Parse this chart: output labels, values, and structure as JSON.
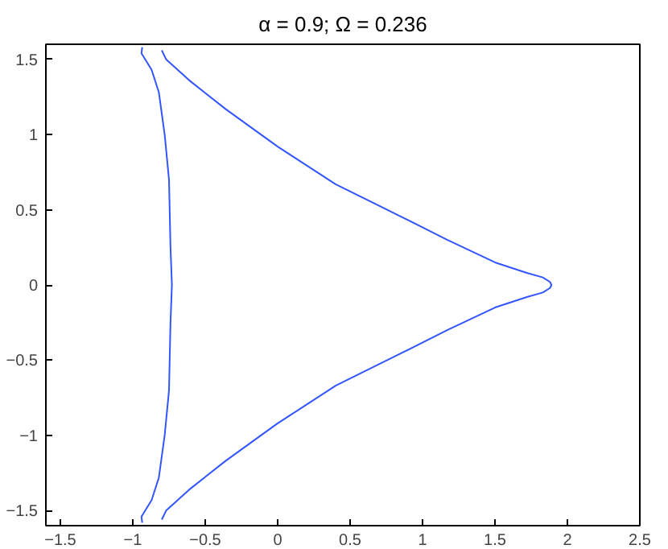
{
  "chart_data": {
    "type": "line",
    "title": "α = 0.9; Ω = 0.236",
    "series": [
      {
        "color": "#3355ff",
        "x": [
          -0.8,
          -0.77,
          -0.61,
          -0.36,
          0,
          0.4,
          0.84,
          1.17,
          1.5,
          1.72,
          1.83,
          1.88,
          1.89,
          1.88,
          1.83,
          1.72,
          1.5,
          1.17,
          0.84,
          0.4,
          0,
          -0.36,
          -0.61,
          -0.77,
          -0.8,
          null,
          -0.935,
          -0.94,
          -0.87,
          -0.82,
          -0.78,
          -0.75,
          -0.74,
          -0.73,
          -0.74,
          -0.75,
          -0.78,
          -0.82,
          -0.87,
          -0.94,
          -0.935
        ],
        "values": [
          1.56,
          1.5,
          1.36,
          1.17,
          0.92,
          0.67,
          0.46,
          0.3,
          0.15,
          0.08,
          0.05,
          0.02,
          0,
          -0.02,
          -0.05,
          -0.08,
          -0.15,
          -0.3,
          -0.46,
          -0.67,
          -0.92,
          -1.17,
          -1.36,
          -1.5,
          -1.56,
          null,
          -1.58,
          -1.54,
          -1.43,
          -1.28,
          -1.0,
          -0.7,
          -0.26,
          0,
          0.26,
          0.7,
          1.0,
          1.28,
          1.43,
          1.54,
          1.58
        ]
      }
    ],
    "xlim": [
      -1.6,
      2.5
    ],
    "ylim": [
      -1.6,
      1.6
    ],
    "xticks": [
      -1.5,
      -1,
      -0.5,
      0,
      0.5,
      1,
      1.5,
      2,
      2.5
    ],
    "yticks": [
      -1.5,
      -1,
      -0.5,
      0,
      0.5,
      1,
      1.5
    ],
    "grid": false,
    "marker": "none",
    "line_style": "solid"
  }
}
